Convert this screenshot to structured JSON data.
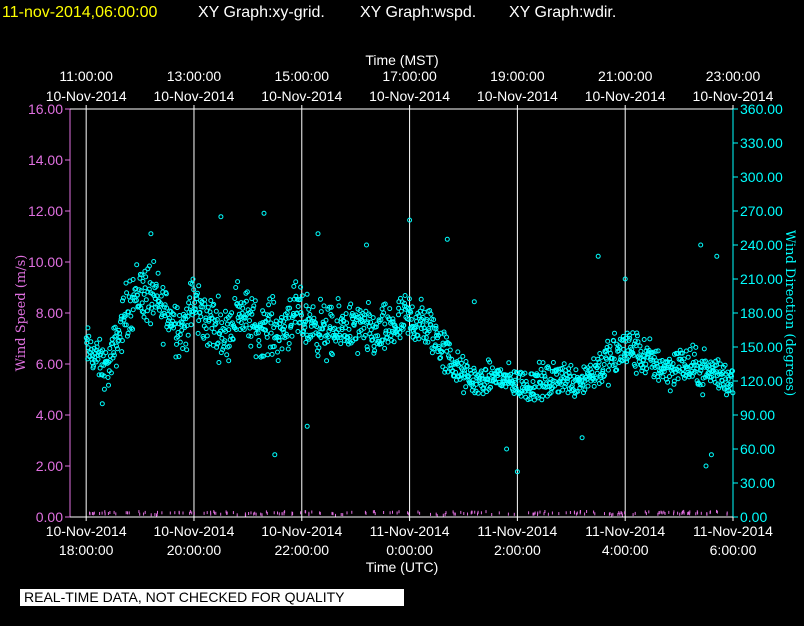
{
  "header": {
    "timestamp": "11-nov-2014,06:00:00",
    "graph_labels": [
      "XY Graph:xy-grid.",
      "XY Graph:wspd.",
      "XY Graph:wdir."
    ]
  },
  "footer": {
    "banner": "REAL-TIME DATA, NOT CHECKED FOR QUALITY"
  },
  "colors": {
    "background": "#000000",
    "speed": "#e070e0",
    "direction": "#00ffff",
    "title": "#ffff00",
    "text": "#ffffff",
    "grid": "#ffffff"
  },
  "chart_data": {
    "type": "scatter",
    "title": "",
    "top_axis": {
      "label": "Time (MST)",
      "ticks": [
        {
          "time": "11:00:00",
          "date": "10-Nov-2014"
        },
        {
          "time": "13:00:00",
          "date": "10-Nov-2014"
        },
        {
          "time": "15:00:00",
          "date": "10-Nov-2014"
        },
        {
          "time": "17:00:00",
          "date": "10-Nov-2014"
        },
        {
          "time": "19:00:00",
          "date": "10-Nov-2014"
        },
        {
          "time": "21:00:00",
          "date": "10-Nov-2014"
        },
        {
          "time": "23:00:00",
          "date": "10-Nov-2014"
        }
      ]
    },
    "bottom_axis": {
      "label": "Time (UTC)",
      "ticks": [
        {
          "date": "10-Nov-2014",
          "time": "18:00:00"
        },
        {
          "date": "10-Nov-2014",
          "time": "20:00:00"
        },
        {
          "date": "10-Nov-2014",
          "time": "22:00:00"
        },
        {
          "date": "11-Nov-2014",
          "time": "0:00:00"
        },
        {
          "date": "11-Nov-2014",
          "time": "2:00:00"
        },
        {
          "date": "11-Nov-2014",
          "time": "4:00:00"
        },
        {
          "date": "11-Nov-2014",
          "time": "6:00:00"
        }
      ]
    },
    "x_hours_utc": [
      18,
      20,
      22,
      24,
      26,
      28,
      30
    ],
    "xlim_hours_utc": [
      17.7,
      30.0
    ],
    "left_axis": {
      "label": "Wind Speed (m/s)",
      "ylim": [
        0,
        16
      ],
      "ticks": [
        "0.00",
        "2.00",
        "4.00",
        "6.00",
        "8.00",
        "10.00",
        "12.00",
        "14.00",
        "16.00"
      ]
    },
    "right_axis": {
      "label": "Wind Direction (degrees)",
      "ylim": [
        0,
        360
      ],
      "ticks": [
        "0.00",
        "30.00",
        "60.00",
        "90.00",
        "120.00",
        "150.00",
        "180.00",
        "210.00",
        "240.00",
        "270.00",
        "300.00",
        "330.00",
        "360.00"
      ]
    },
    "grid": "vertical",
    "series": [
      {
        "name": "Wind Direction (degrees)",
        "axis": "right",
        "marker": "circle",
        "x_hours_utc": [
          18.0,
          18.2,
          18.4,
          18.6,
          18.8,
          19.0,
          19.2,
          19.4,
          19.6,
          19.8,
          20.0,
          20.2,
          20.4,
          20.6,
          20.8,
          21.0,
          21.2,
          21.4,
          21.6,
          21.8,
          22.0,
          22.2,
          22.4,
          22.6,
          22.8,
          23.0,
          23.2,
          23.4,
          23.6,
          23.8,
          24.0,
          24.2,
          24.4,
          24.6,
          24.8,
          25.0,
          25.2,
          25.4,
          25.6,
          25.8,
          26.0,
          26.2,
          26.4,
          26.6,
          26.8,
          27.0,
          27.2,
          27.4,
          27.6,
          27.8,
          28.0,
          28.2,
          28.4,
          28.6,
          28.8,
          29.0,
          29.2,
          29.4,
          29.6,
          29.8,
          30.0
        ],
        "values": [
          150,
          140,
          130,
          160,
          190,
          200,
          195,
          185,
          175,
          165,
          190,
          175,
          170,
          160,
          185,
          175,
          165,
          170,
          160,
          180,
          175,
          170,
          165,
          160,
          170,
          165,
          165,
          160,
          165,
          170,
          175,
          170,
          165,
          150,
          135,
          125,
          120,
          120,
          125,
          120,
          118,
          115,
          120,
          118,
          125,
          120,
          122,
          128,
          135,
          140,
          150,
          145,
          140,
          135,
          130,
          135,
          132,
          130,
          128,
          125,
          120
        ],
        "spread": [
          20,
          18,
          20,
          22,
          28,
          30,
          30,
          28,
          26,
          26,
          28,
          26,
          26,
          24,
          26,
          26,
          24,
          26,
          24,
          28,
          26,
          24,
          26,
          24,
          24,
          24,
          24,
          22,
          24,
          24,
          24,
          24,
          22,
          22,
          18,
          16,
          14,
          14,
          14,
          14,
          14,
          16,
          16,
          16,
          16,
          16,
          16,
          18,
          20,
          22,
          22,
          20,
          18,
          18,
          18,
          18,
          18,
          18,
          18,
          18,
          16
        ],
        "outliers": [
          {
            "x": 19.2,
            "y": 250
          },
          {
            "x": 20.5,
            "y": 265
          },
          {
            "x": 21.3,
            "y": 268
          },
          {
            "x": 22.3,
            "y": 250
          },
          {
            "x": 23.2,
            "y": 240
          },
          {
            "x": 24.0,
            "y": 262
          },
          {
            "x": 24.7,
            "y": 245
          },
          {
            "x": 22.1,
            "y": 80
          },
          {
            "x": 21.5,
            "y": 55
          },
          {
            "x": 26.0,
            "y": 40
          },
          {
            "x": 25.8,
            "y": 60
          },
          {
            "x": 27.2,
            "y": 70
          },
          {
            "x": 28.0,
            "y": 210
          },
          {
            "x": 27.5,
            "y": 230
          },
          {
            "x": 29.4,
            "y": 240
          },
          {
            "x": 29.7,
            "y": 230
          },
          {
            "x": 29.5,
            "y": 45
          },
          {
            "x": 29.6,
            "y": 55
          },
          {
            "x": 25.2,
            "y": 190
          },
          {
            "x": 18.3,
            "y": 100
          }
        ]
      },
      {
        "name": "Wind Speed (m/s)",
        "axis": "left",
        "marker": "tick",
        "x_hours_utc": [
          18.0,
          18.5,
          19.0,
          19.5,
          20.0,
          20.5,
          21.0,
          21.5,
          22.0,
          22.5,
          23.0,
          23.5,
          24.0,
          24.5,
          25.0,
          25.5,
          26.0,
          26.5,
          27.0,
          27.5,
          28.0,
          28.5,
          29.0,
          29.5,
          30.0
        ],
        "values": [
          0.1,
          0.1,
          0.1,
          0.05,
          0.1,
          0.1,
          0.05,
          0.1,
          0.1,
          0.05,
          0.1,
          0.1,
          0.1,
          0.05,
          0.1,
          0.1,
          0.05,
          0.1,
          0.1,
          0.1,
          0.05,
          0.1,
          0.1,
          0.1,
          0.1
        ]
      }
    ]
  }
}
